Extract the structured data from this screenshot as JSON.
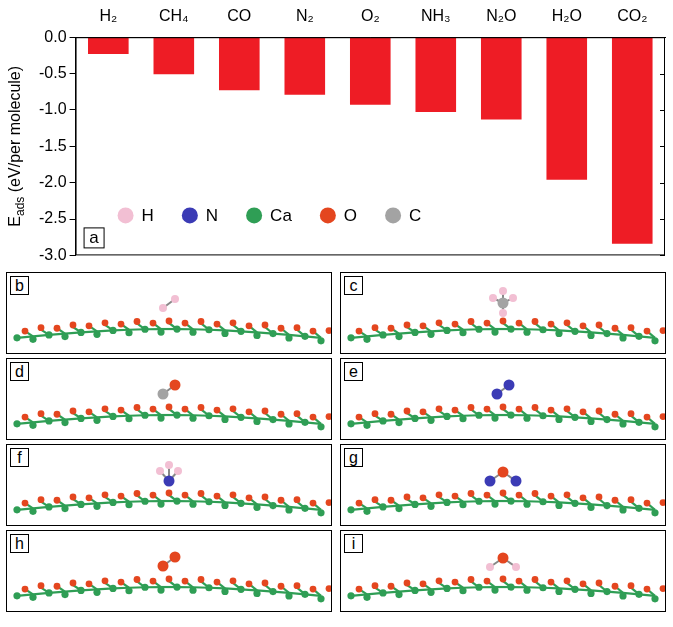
{
  "chart_data": {
    "type": "bar",
    "categories": [
      "H₂",
      "CH₄",
      "CO",
      "N₂",
      "O₂",
      "NH₃",
      "N₂O",
      "H₂O",
      "CO₂"
    ],
    "values": [
      -0.23,
      -0.51,
      -0.73,
      -0.79,
      -0.93,
      -1.03,
      -1.13,
      -1.96,
      -2.84
    ],
    "color": "#ee1c25",
    "y_label": {
      "text": "E",
      "subscript": "ads",
      "suffix": " (eV/per molecule)"
    },
    "ylim": [
      -3.0,
      0.0
    ],
    "yticks": [
      {
        "value": -3.0,
        "label": "-3.0"
      },
      -2.5,
      {
        "value": -2.0,
        "label": "-2.0"
      },
      -1.5,
      {
        "value": -1.0,
        "label": "-1.0"
      },
      -0.5,
      {
        "value": 0.0,
        "label": "0.0"
      }
    ],
    "grid": false
  },
  "panel_label": "a",
  "atom_legend": [
    {
      "name": "H",
      "color": "#f2bfd3"
    },
    {
      "name": "N",
      "color": "#3b3bb5"
    },
    {
      "name": "Ca",
      "color": "#2f9e55"
    },
    {
      "name": "O",
      "color": "#e4461f"
    },
    {
      "name": "C",
      "color": "#a3a3a3"
    }
  ],
  "panels": [
    {
      "label": "b",
      "atoms": [
        "H",
        "H"
      ]
    },
    {
      "label": "c",
      "atoms": [
        "C",
        "H",
        "H",
        "H",
        "H"
      ]
    },
    {
      "label": "d",
      "atoms": [
        "C",
        "O"
      ]
    },
    {
      "label": "e",
      "atoms": [
        "N",
        "N"
      ]
    },
    {
      "label": "f",
      "atoms": [
        "N",
        "H",
        "H",
        "H"
      ]
    },
    {
      "label": "g",
      "atoms": [
        "N",
        "O",
        "N"
      ]
    },
    {
      "label": "h",
      "atoms": [
        "O",
        "O"
      ]
    },
    {
      "label": "i",
      "atoms": [
        "H",
        "O",
        "H"
      ]
    }
  ]
}
